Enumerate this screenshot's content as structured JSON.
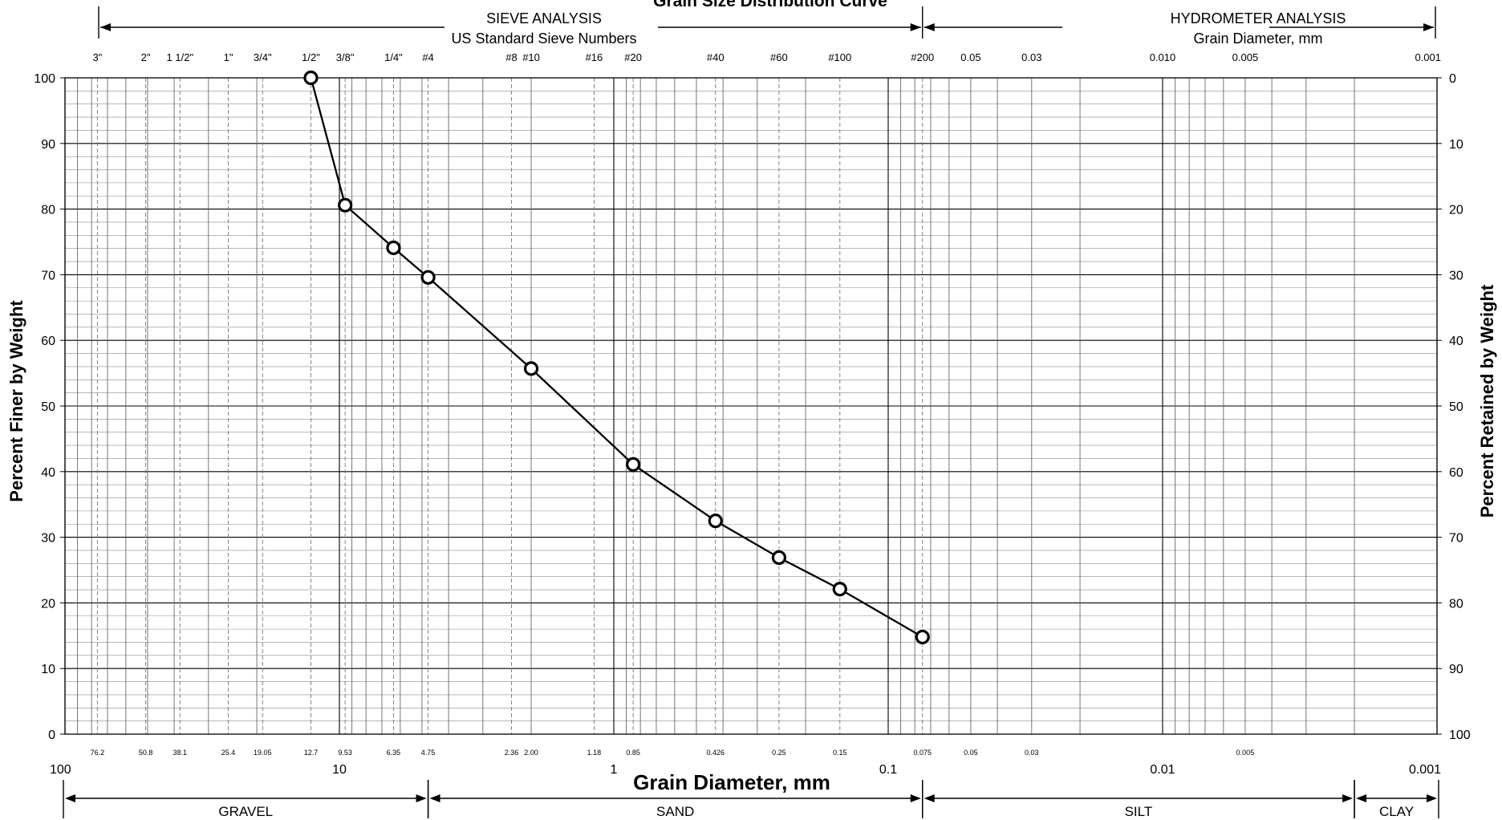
{
  "chart_data": {
    "type": "scatter",
    "title": "Grain Size Distribution Curve",
    "xlabel": "Grain Diameter, mm",
    "ylabel": "Percent Finer by Weight",
    "y2label": "Percent Retained by Weight",
    "xscale": "log",
    "xlim": [
      100,
      0.001
    ],
    "ylim": [
      0,
      100
    ],
    "grid": true,
    "legend": "none",
    "x_major_labels": [
      {
        "value": 100,
        "label": "100"
      },
      {
        "value": 10,
        "label": "10"
      },
      {
        "value": 1,
        "label": "1"
      },
      {
        "value": 0.1,
        "label": "0.1"
      },
      {
        "value": 0.01,
        "label": "0.01"
      },
      {
        "value": 0.001,
        "label": "0.001"
      }
    ],
    "y_ticks": [
      0,
      10,
      20,
      30,
      40,
      50,
      60,
      70,
      80,
      90,
      100
    ],
    "y2_ticks": [
      100,
      90,
      80,
      70,
      60,
      50,
      40,
      30,
      20,
      10,
      0
    ],
    "sieve_sizes": [
      {
        "sieve": "3\"",
        "mm": 76.2,
        "mm_label": "76.2"
      },
      {
        "sieve": "2\"",
        "mm": 50.8,
        "mm_label": "50.8"
      },
      {
        "sieve": "1 1/2\"",
        "mm": 38.1,
        "mm_label": "38.1"
      },
      {
        "sieve": "1\"",
        "mm": 25.4,
        "mm_label": "25.4"
      },
      {
        "sieve": "3/4\"",
        "mm": 19.05,
        "mm_label": "19.05"
      },
      {
        "sieve": "1/2\"",
        "mm": 12.7,
        "mm_label": "12.7"
      },
      {
        "sieve": "3/8\"",
        "mm": 9.53,
        "mm_label": "9.53"
      },
      {
        "sieve": "1/4\"",
        "mm": 6.35,
        "mm_label": "6.35"
      },
      {
        "sieve": "#4",
        "mm": 4.75,
        "mm_label": "4.75"
      },
      {
        "sieve": "#8",
        "mm": 2.36,
        "mm_label": "2.36"
      },
      {
        "sieve": "#10",
        "mm": 2.0,
        "mm_label": "2.00"
      },
      {
        "sieve": "#16",
        "mm": 1.18,
        "mm_label": "1.18"
      },
      {
        "sieve": "#20",
        "mm": 0.85,
        "mm_label": "0.85"
      },
      {
        "sieve": "#40",
        "mm": 0.426,
        "mm_label": "0.426"
      },
      {
        "sieve": "#60",
        "mm": 0.25,
        "mm_label": "0.25"
      },
      {
        "sieve": "#100",
        "mm": 0.15,
        "mm_label": "0.15"
      },
      {
        "sieve": "#200",
        "mm": 0.075,
        "mm_label": "0.075"
      }
    ],
    "hydrometer_sizes": [
      {
        "mm": 0.05,
        "label": "0.05",
        "bottom": "0.05"
      },
      {
        "mm": 0.03,
        "label": "0.03",
        "bottom": "0.03"
      },
      {
        "mm": 0.01,
        "label": "0.010",
        "bottom": ""
      },
      {
        "mm": 0.005,
        "label": "0.005",
        "bottom": "0.005"
      },
      {
        "mm": 0.001,
        "label": "0.001",
        "bottom": ""
      }
    ],
    "series": [
      {
        "x": [
          12.7,
          9.53,
          6.35,
          4.75,
          2.0,
          0.85,
          0.426,
          0.25,
          0.15,
          0.075
        ],
        "y": [
          100,
          80.6,
          74.1,
          69.6,
          55.7,
          41.1,
          32.5,
          26.9,
          22.1,
          14.8
        ],
        "color": "#000000",
        "marker": "open-circle"
      }
    ],
    "top_annotations": {
      "sieve_line1": "SIEVE ANALYSIS",
      "sieve_line2": "US Standard Sieve Numbers",
      "hydro_line1": "HYDROMETER ANALYSIS",
      "hydro_line2": "Grain Diameter, mm"
    },
    "soil_classes": [
      {
        "label": "GRAVEL",
        "from": 100,
        "to": 4.75
      },
      {
        "label": "SAND",
        "from": 4.75,
        "to": 0.075
      },
      {
        "label": "SILT",
        "from": 0.075,
        "to": 0.002
      },
      {
        "label": "CLAY",
        "from": 0.002,
        "to": 0.001
      }
    ]
  }
}
